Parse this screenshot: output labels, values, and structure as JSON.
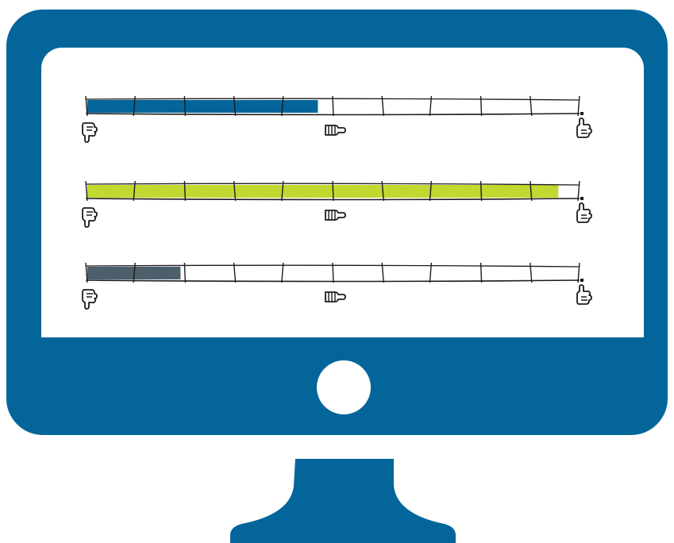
{
  "colors": {
    "monitor": "#03659a",
    "screen": "#ffffff",
    "outline": "#1b1b1b"
  },
  "meters": [
    {
      "name": "meter-1",
      "fill_color": "#03659a",
      "level": 0.47
    },
    {
      "name": "meter-2",
      "fill_color": "#c2d830",
      "level": 0.96
    },
    {
      "name": "meter-3",
      "fill_color": "#4e5f6c",
      "level": 0.19
    }
  ],
  "icons": {
    "low": "thumbs-down-icon",
    "mid": "thumbs-sideways-icon",
    "high": "thumbs-up-icon"
  }
}
